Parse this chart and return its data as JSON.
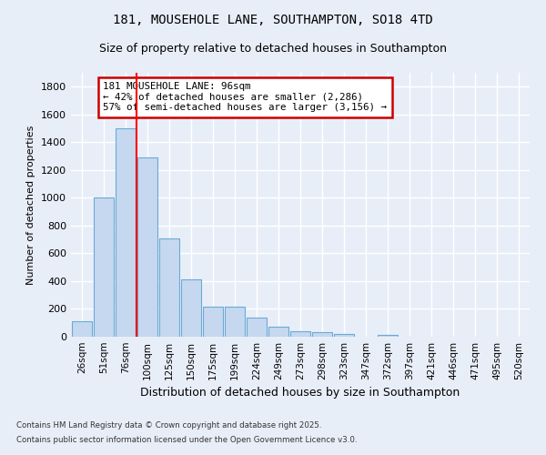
{
  "title1": "181, MOUSEHOLE LANE, SOUTHAMPTON, SO18 4TD",
  "title2": "Size of property relative to detached houses in Southampton",
  "xlabel": "Distribution of detached houses by size in Southampton",
  "ylabel": "Number of detached properties",
  "categories": [
    "26sqm",
    "51sqm",
    "76sqm",
    "100sqm",
    "125sqm",
    "150sqm",
    "175sqm",
    "199sqm",
    "224sqm",
    "249sqm",
    "273sqm",
    "298sqm",
    "323sqm",
    "347sqm",
    "372sqm",
    "397sqm",
    "421sqm",
    "446sqm",
    "471sqm",
    "495sqm",
    "520sqm"
  ],
  "values": [
    110,
    1000,
    1500,
    1290,
    710,
    410,
    215,
    215,
    135,
    75,
    40,
    30,
    20,
    0,
    15,
    0,
    0,
    0,
    0,
    0,
    0
  ],
  "bar_color": "#c5d8f0",
  "bar_edge_color": "#6aaad4",
  "red_line_x": 2.5,
  "annotation_title": "181 MOUSEHOLE LANE: 96sqm",
  "annotation_line1": "← 42% of detached houses are smaller (2,286)",
  "annotation_line2": "57% of semi-detached houses are larger (3,156) →",
  "annotation_box_facecolor": "#ffffff",
  "annotation_box_edgecolor": "#cc0000",
  "ylim": [
    0,
    1900
  ],
  "yticks": [
    0,
    200,
    400,
    600,
    800,
    1000,
    1200,
    1400,
    1600,
    1800
  ],
  "footer1": "Contains HM Land Registry data © Crown copyright and database right 2025.",
  "footer2": "Contains public sector information licensed under the Open Government Licence v3.0.",
  "bg_color": "#e8eef8",
  "grid_color": "#ffffff",
  "title1_fontsize": 10,
  "title2_fontsize": 9,
  "ylabel_fontsize": 8,
  "xlabel_fontsize": 9
}
